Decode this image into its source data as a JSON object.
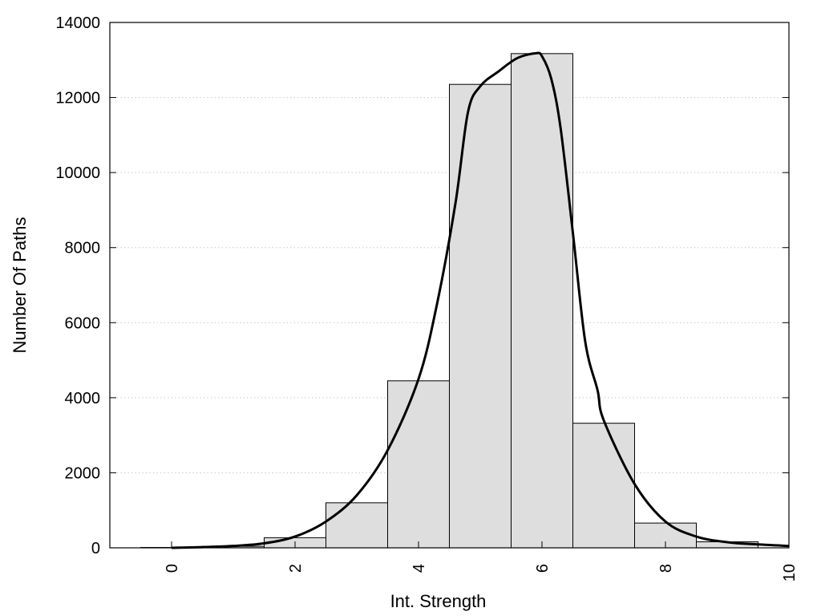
{
  "chart_data": {
    "type": "bar",
    "xlabel": "Int. Strength",
    "ylabel": "Number Of Paths",
    "xlim": [
      -1,
      10
    ],
    "ylim": [
      0,
      14000
    ],
    "x_ticks": [
      "0",
      "2",
      "4",
      "6",
      "8",
      "10"
    ],
    "y_ticks": [
      "0",
      "2000",
      "4000",
      "6000",
      "8000",
      "10000",
      "12000",
      "14000"
    ],
    "grid": "horizontal dotted",
    "bins": [
      {
        "center": 0,
        "value": 10
      },
      {
        "center": 1,
        "value": 40
      },
      {
        "center": 2,
        "value": 270
      },
      {
        "center": 3,
        "value": 1200
      },
      {
        "center": 4,
        "value": 4450
      },
      {
        "center": 5,
        "value": 12350
      },
      {
        "center": 6,
        "value": 13170
      },
      {
        "center": 7,
        "value": 3320
      },
      {
        "center": 8,
        "value": 660
      },
      {
        "center": 9,
        "value": 160
      },
      {
        "center": 10,
        "value": 0
      }
    ],
    "curve": {
      "x": [
        0,
        0.5,
        1,
        1.5,
        2,
        2.5,
        3,
        3.5,
        4,
        4.3,
        4.6,
        4.8,
        5,
        5.3,
        5.6,
        5.9,
        6,
        6.15,
        6.3,
        6.5,
        6.7,
        6.9,
        7,
        7.5,
        8,
        8.5,
        9,
        9.5,
        10
      ],
      "y": [
        0,
        20,
        50,
        120,
        300,
        700,
        1400,
        2600,
        4500,
        6500,
        9200,
        11600,
        12300,
        12700,
        13050,
        13180,
        13100,
        12500,
        11200,
        8400,
        5500,
        4200,
        3400,
        1700,
        700,
        300,
        150,
        90,
        50
      ]
    },
    "colors": {
      "bar_fill": "#dedede",
      "bar_stroke": "#000000",
      "curve": "#000000",
      "grid": "#c8c8c8"
    }
  }
}
